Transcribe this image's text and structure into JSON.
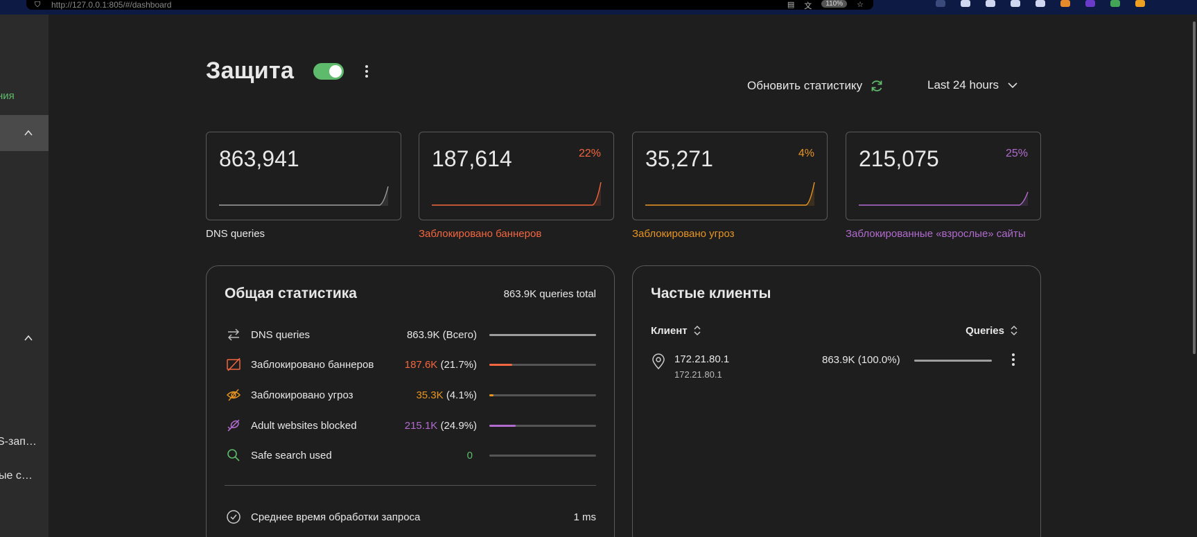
{
  "browser": {
    "url": "http://127.0.0.1:805/#/dashboard",
    "zoom": "110%"
  },
  "sidebar": {
    "items": [
      {
        "label": "ния"
      },
      {
        "label": "S-зап…"
      },
      {
        "label": "ые с…"
      }
    ]
  },
  "header": {
    "title": "Защита",
    "protection_enabled": true,
    "refresh_label": "Обновить статистику",
    "period_label": "Last 24 hours"
  },
  "colors": {
    "green": "#5fbb6c",
    "red": "#f4663f",
    "orange": "#e89520",
    "purple": "#b26ccf",
    "gray": "#9e9e9e"
  },
  "stat_cards": [
    {
      "value": "863,941",
      "percent": "",
      "label": "DNS queries"
    },
    {
      "value": "187,614",
      "percent": "22%",
      "label": "Заблокировано баннеров"
    },
    {
      "value": "35,271",
      "percent": "4%",
      "label": "Заблокировано угроз"
    },
    {
      "value": "215,075",
      "percent": "25%",
      "label": "Заблокированные «взрослые» сайты"
    }
  ],
  "general_stats": {
    "title": "Общая статистика",
    "total": "863.9K queries total",
    "rows": [
      {
        "icon": "arrows-swap-icon",
        "label": "DNS queries",
        "value": "863.9K",
        "paren": "(Всего)",
        "fraction": 1.0
      },
      {
        "icon": "ad-blocked-icon",
        "label": "Заблокировано баннеров",
        "value": "187.6K",
        "paren": "(21.7%)",
        "fraction": 0.217
      },
      {
        "icon": "eye-blocked-icon",
        "label": "Заблокировано угроз",
        "value": "35.3K",
        "paren": "(4.1%)",
        "fraction": 0.041
      },
      {
        "icon": "adult-blocked-icon",
        "label": "Adult websites blocked",
        "value": "215.1K",
        "paren": "(24.9%)",
        "fraction": 0.249
      },
      {
        "icon": "search-icon",
        "label": "Safe search used",
        "value": "0",
        "paren": "",
        "fraction": 0
      }
    ],
    "avg_label": "Среднее время обработки запроса",
    "avg_value": "1 ms"
  },
  "top_clients": {
    "title": "Частые клиенты",
    "col_client": "Клиент",
    "col_queries": "Queries",
    "rows": [
      {
        "name": "172.21.80.1",
        "ip": "172.21.80.1",
        "value": "863.9K",
        "paren": "(100.0%)",
        "fraction": 1.0
      }
    ]
  }
}
